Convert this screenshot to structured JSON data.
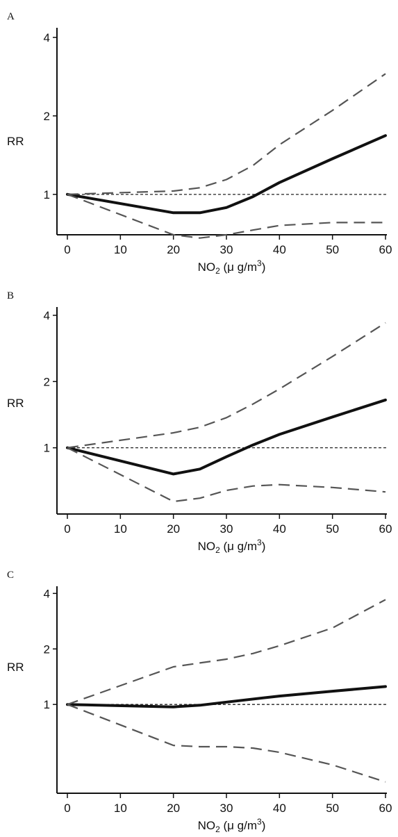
{
  "chart_data": [
    {
      "type": "line",
      "panel_label": "A",
      "xlabel": {
        "base": "NO",
        "sub": "2",
        "mid": " (μ g/m",
        "sup": "3",
        "end": ")"
      },
      "ylabel": "RR",
      "xlim": [
        0,
        60
      ],
      "ylim": [
        0.7,
        4.3
      ],
      "yscale": "log",
      "xticks": [
        0,
        10,
        20,
        30,
        40,
        50,
        60
      ],
      "yticks": [
        1,
        2,
        4
      ],
      "reference_line": 1,
      "series": [
        {
          "style": "estimate",
          "x": [
            0,
            20,
            25,
            30,
            35,
            40,
            50,
            60
          ],
          "y": [
            1.0,
            0.85,
            0.85,
            0.89,
            0.98,
            1.11,
            1.37,
            1.68
          ]
        },
        {
          "style": "upper-ci",
          "x": [
            0,
            20,
            25,
            30,
            35,
            40,
            50,
            60
          ],
          "y": [
            1.0,
            1.03,
            1.06,
            1.14,
            1.29,
            1.55,
            2.1,
            2.9
          ]
        },
        {
          "style": "lower-ci",
          "x": [
            0,
            20,
            25,
            30,
            35,
            40,
            50,
            60
          ],
          "y": [
            1.0,
            0.7,
            0.68,
            0.7,
            0.73,
            0.76,
            0.78,
            0.78
          ]
        }
      ]
    },
    {
      "type": "line",
      "panel_label": "B",
      "xlabel": {
        "base": "NO",
        "sub": "2",
        "mid": " (μ g/m",
        "sup": "3",
        "end": ")"
      },
      "ylabel": "RR",
      "xlim": [
        0,
        60
      ],
      "ylim": [
        0.5,
        4.3
      ],
      "yscale": "log",
      "xticks": [
        0,
        10,
        20,
        30,
        40,
        50,
        60
      ],
      "yticks": [
        1,
        2,
        4
      ],
      "reference_line": 1,
      "series": [
        {
          "style": "estimate",
          "x": [
            0,
            20,
            25,
            30,
            35,
            40,
            50,
            60
          ],
          "y": [
            1.0,
            0.76,
            0.8,
            0.91,
            1.03,
            1.15,
            1.38,
            1.65
          ]
        },
        {
          "style": "upper-ci",
          "x": [
            0,
            20,
            25,
            30,
            35,
            40,
            50,
            60
          ],
          "y": [
            1.0,
            1.17,
            1.24,
            1.37,
            1.58,
            1.85,
            2.6,
            3.7
          ]
        },
        {
          "style": "lower-ci",
          "x": [
            0,
            20,
            25,
            30,
            35,
            40,
            50,
            60
          ],
          "y": [
            1.0,
            0.57,
            0.59,
            0.64,
            0.67,
            0.68,
            0.66,
            0.63
          ]
        }
      ]
    },
    {
      "type": "line",
      "panel_label": "C",
      "xlabel": {
        "base": "NO",
        "sub": "2",
        "mid": " (μ g/m",
        "sup": "3",
        "end": ")"
      },
      "ylabel": "RR",
      "xlim": [
        0,
        60
      ],
      "ylim": [
        0.33,
        4.3
      ],
      "yscale": "log",
      "xticks": [
        0,
        10,
        20,
        30,
        40,
        50,
        60
      ],
      "yticks": [
        1,
        2,
        4
      ],
      "reference_line": 1,
      "series": [
        {
          "style": "estimate",
          "x": [
            0,
            20,
            25,
            30,
            40,
            50,
            60
          ],
          "y": [
            1.0,
            0.97,
            0.99,
            1.03,
            1.11,
            1.18,
            1.25
          ]
        },
        {
          "style": "upper-ci",
          "x": [
            0,
            20,
            25,
            30,
            35,
            40,
            50,
            60
          ],
          "y": [
            1.0,
            1.6,
            1.68,
            1.76,
            1.89,
            2.08,
            2.6,
            3.7
          ]
        },
        {
          "style": "lower-ci",
          "x": [
            0,
            20,
            25,
            30,
            35,
            40,
            50,
            60
          ],
          "y": [
            1.0,
            0.6,
            0.59,
            0.59,
            0.58,
            0.55,
            0.47,
            0.38
          ]
        }
      ]
    }
  ]
}
